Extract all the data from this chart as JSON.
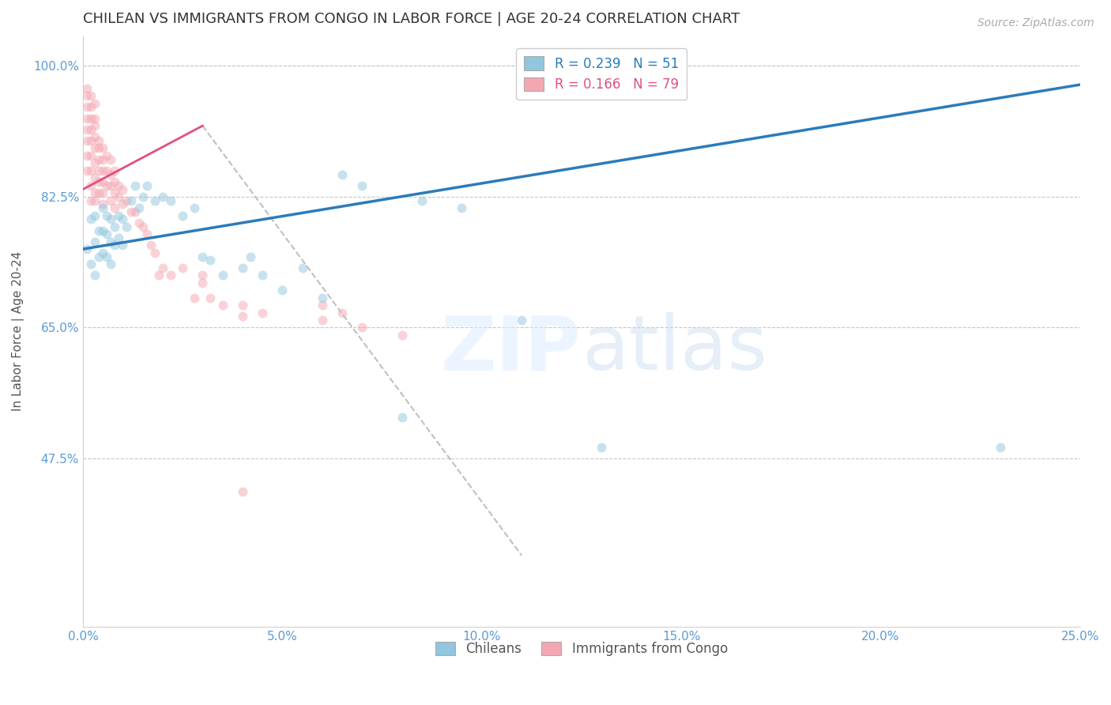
{
  "title": "CHILEAN VS IMMIGRANTS FROM CONGO IN LABOR FORCE | AGE 20-24 CORRELATION CHART",
  "source": "Source: ZipAtlas.com",
  "ylabel": "In Labor Force | Age 20-24",
  "xlim": [
    0.0,
    0.25
  ],
  "ylim": [
    0.25,
    1.04
  ],
  "xticks": [
    0.0,
    0.05,
    0.1,
    0.15,
    0.2,
    0.25
  ],
  "yticks": [
    0.475,
    0.65,
    0.825,
    1.0
  ],
  "ytick_labels": [
    "47.5%",
    "65.0%",
    "82.5%",
    "100.0%"
  ],
  "xtick_labels": [
    "0.0%",
    "5.0%",
    "10.0%",
    "15.0%",
    "20.0%",
    "25.0%"
  ],
  "legend_entries": [
    {
      "label": "R = 0.239   N = 51"
    },
    {
      "label": "R = 0.166   N = 79"
    }
  ],
  "legend_labels_bottom": [
    "Chileans",
    "Immigrants from Congo"
  ],
  "axis_color": "#5b9bd5",
  "gridline_color": "#c8c8c8",
  "blue_scatter_x": [
    0.001,
    0.002,
    0.002,
    0.003,
    0.003,
    0.003,
    0.004,
    0.004,
    0.005,
    0.005,
    0.005,
    0.006,
    0.006,
    0.006,
    0.007,
    0.007,
    0.007,
    0.008,
    0.008,
    0.009,
    0.009,
    0.01,
    0.01,
    0.011,
    0.012,
    0.013,
    0.014,
    0.015,
    0.016,
    0.018,
    0.02,
    0.022,
    0.025,
    0.028,
    0.03,
    0.032,
    0.035,
    0.04,
    0.042,
    0.045,
    0.05,
    0.055,
    0.06,
    0.065,
    0.07,
    0.08,
    0.085,
    0.095,
    0.11,
    0.13,
    0.23
  ],
  "blue_scatter_y": [
    0.755,
    0.795,
    0.735,
    0.8,
    0.765,
    0.72,
    0.78,
    0.745,
    0.81,
    0.78,
    0.75,
    0.8,
    0.775,
    0.745,
    0.795,
    0.765,
    0.735,
    0.785,
    0.76,
    0.8,
    0.77,
    0.795,
    0.76,
    0.785,
    0.82,
    0.84,
    0.81,
    0.825,
    0.84,
    0.82,
    0.825,
    0.82,
    0.8,
    0.81,
    0.745,
    0.74,
    0.72,
    0.73,
    0.745,
    0.72,
    0.7,
    0.73,
    0.69,
    0.855,
    0.84,
    0.53,
    0.82,
    0.81,
    0.66,
    0.49,
    0.49
  ],
  "pink_scatter_x": [
    0.001,
    0.001,
    0.001,
    0.001,
    0.001,
    0.001,
    0.001,
    0.001,
    0.002,
    0.002,
    0.002,
    0.002,
    0.002,
    0.002,
    0.002,
    0.002,
    0.002,
    0.003,
    0.003,
    0.003,
    0.003,
    0.003,
    0.003,
    0.003,
    0.003,
    0.003,
    0.004,
    0.004,
    0.004,
    0.004,
    0.004,
    0.004,
    0.005,
    0.005,
    0.005,
    0.005,
    0.005,
    0.005,
    0.006,
    0.006,
    0.006,
    0.007,
    0.007,
    0.007,
    0.007,
    0.008,
    0.008,
    0.008,
    0.008,
    0.009,
    0.009,
    0.01,
    0.01,
    0.011,
    0.012,
    0.013,
    0.014,
    0.015,
    0.016,
    0.017,
    0.018,
    0.019,
    0.02,
    0.022,
    0.025,
    0.028,
    0.03,
    0.03,
    0.032,
    0.035,
    0.04,
    0.04,
    0.045,
    0.06,
    0.06,
    0.065,
    0.07,
    0.08,
    0.04
  ],
  "pink_scatter_y": [
    0.97,
    0.96,
    0.945,
    0.93,
    0.915,
    0.9,
    0.88,
    0.86,
    0.96,
    0.945,
    0.93,
    0.915,
    0.9,
    0.88,
    0.86,
    0.84,
    0.82,
    0.95,
    0.93,
    0.92,
    0.905,
    0.89,
    0.87,
    0.85,
    0.83,
    0.82,
    0.9,
    0.89,
    0.875,
    0.86,
    0.845,
    0.83,
    0.89,
    0.875,
    0.86,
    0.845,
    0.83,
    0.815,
    0.88,
    0.86,
    0.84,
    0.875,
    0.855,
    0.84,
    0.82,
    0.86,
    0.845,
    0.83,
    0.81,
    0.84,
    0.825,
    0.835,
    0.815,
    0.82,
    0.805,
    0.805,
    0.79,
    0.785,
    0.775,
    0.76,
    0.75,
    0.72,
    0.73,
    0.72,
    0.73,
    0.69,
    0.71,
    0.72,
    0.69,
    0.68,
    0.68,
    0.665,
    0.67,
    0.68,
    0.66,
    0.67,
    0.65,
    0.64,
    0.43
  ],
  "blue_line": {
    "x0": 0.0,
    "y0": 0.755,
    "x1": 0.25,
    "y1": 0.975
  },
  "pink_solid_line": {
    "x0": 0.0,
    "y0": 0.835,
    "x1": 0.03,
    "y1": 0.92
  },
  "pink_dashed_line": {
    "x0": 0.03,
    "y0": 0.92,
    "x1": 0.11,
    "y1": 0.345
  },
  "blue_color": "#92c5de",
  "blue_line_color": "#2b7bba",
  "pink_color": "#f4a7b2",
  "pink_line_color": "#e05080",
  "pink_dashed_color": "#c0c0c0",
  "scatter_size": 75,
  "scatter_alpha": 0.5,
  "title_fontsize": 13,
  "label_fontsize": 11,
  "tick_fontsize": 11,
  "legend_fontsize": 12
}
